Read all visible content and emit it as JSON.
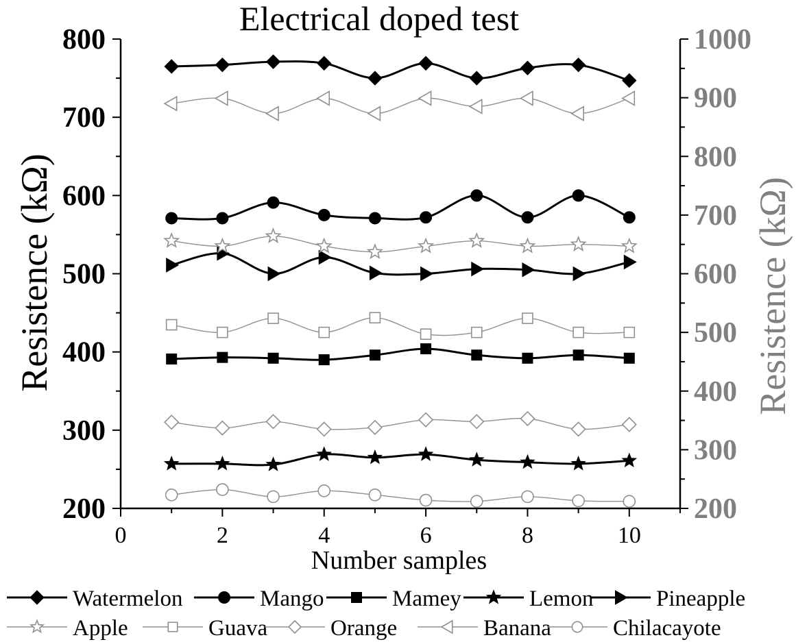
{
  "chart_data": {
    "type": "line",
    "title": "Electrical doped test",
    "xlabel": "Number samples",
    "ylabel_left": "Resistence (kΩ)",
    "ylabel_right": "Resistence (kΩ)",
    "xlim": [
      0,
      11
    ],
    "ylim_left": [
      200,
      800
    ],
    "ylim_right": [
      200,
      1000
    ],
    "x_ticks": [
      "0",
      "2",
      "4",
      "6",
      "8",
      "10"
    ],
    "y_left_ticks": [
      "200",
      "300",
      "400",
      "500",
      "600",
      "700",
      "800"
    ],
    "y_right_ticks": [
      "200",
      "300",
      "400",
      "500",
      "600",
      "700",
      "800",
      "900",
      "1000"
    ],
    "grid": false,
    "legend_position": "bottom",
    "colors": {
      "left_axis": "#000000",
      "right_axis": "#808080",
      "light_series": "#909090"
    },
    "x": [
      1,
      2,
      3,
      4,
      5,
      6,
      7,
      8,
      9,
      10
    ],
    "series": [
      {
        "name": "Watermelon",
        "axis": "left",
        "marker": "diamond-filled",
        "values": [
          765,
          767,
          771,
          769,
          750,
          769,
          750,
          763,
          767,
          747
        ]
      },
      {
        "name": "Mango",
        "axis": "left",
        "marker": "circle-filled",
        "values": [
          571,
          571,
          591,
          575,
          571,
          572,
          600,
          572,
          600,
          572
        ]
      },
      {
        "name": "Mamey",
        "axis": "left",
        "marker": "square-filled",
        "values": [
          391,
          393,
          392,
          390,
          396,
          404,
          396,
          392,
          396,
          392
        ]
      },
      {
        "name": "Lemon",
        "axis": "left",
        "marker": "star-filled",
        "values": [
          257,
          257,
          256,
          269,
          265,
          269,
          262,
          259,
          257,
          261
        ]
      },
      {
        "name": "Pineapple",
        "axis": "left",
        "marker": "triangle-right-filled",
        "values": [
          511,
          526,
          500,
          521,
          501,
          500,
          506,
          505,
          500,
          515
        ]
      },
      {
        "name": "Apple",
        "axis": "right",
        "marker": "star-open",
        "values": [
          656,
          647,
          664,
          647,
          637,
          647,
          656,
          647,
          650,
          647
        ]
      },
      {
        "name": "Guava",
        "axis": "right",
        "marker": "square-open",
        "values": [
          513,
          500,
          524,
          500,
          525,
          497,
          500,
          524,
          500,
          500
        ]
      },
      {
        "name": "Orange",
        "axis": "right",
        "marker": "diamond-open",
        "values": [
          347,
          337,
          348,
          335,
          338,
          351,
          348,
          353,
          335,
          343
        ]
      },
      {
        "name": "Banana",
        "axis": "right",
        "marker": "triangle-left-open",
        "values": [
          890,
          899,
          873,
          899,
          873,
          899,
          885,
          899,
          873,
          899
        ]
      },
      {
        "name": "Chilacayote",
        "axis": "right",
        "marker": "circle-open",
        "values": [
          223,
          232,
          220,
          230,
          223,
          214,
          212,
          220,
          213,
          212
        ]
      }
    ]
  }
}
